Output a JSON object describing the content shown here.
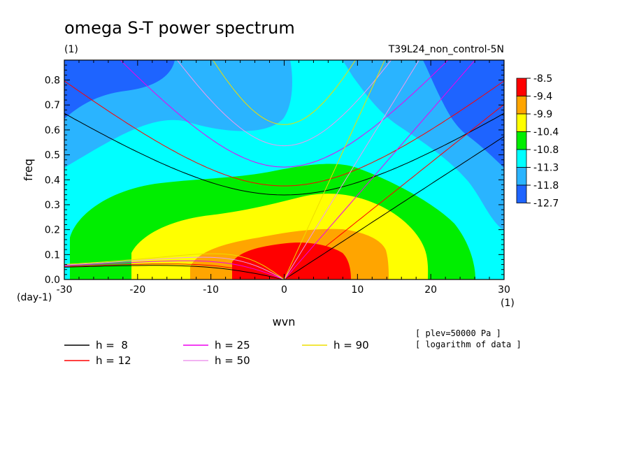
{
  "chart_data": {
    "type": "heatmap",
    "title": "omega S-T power spectrum",
    "units_left": "(1)",
    "run_label": "T39L24_non_control-5N",
    "xlabel": "wvn",
    "ylabel": "freq",
    "x_units": "(1)",
    "y_units": "(day-1)",
    "xlim": [
      -30,
      30
    ],
    "ylim": [
      0,
      0.88
    ],
    "xticks": [
      -30,
      -20,
      -10,
      0,
      10,
      20,
      30
    ],
    "yticks": [
      0.0,
      0.1,
      0.2,
      0.3,
      0.4,
      0.5,
      0.6,
      0.7,
      0.8
    ],
    "colorbar": {
      "levels": [
        "-8.5",
        "-9.4",
        "-9.9",
        "-10.4",
        "-10.8",
        "-11.3",
        "-11.8",
        "-12.7"
      ],
      "colors": [
        "#ff0000",
        "#ffa500",
        "#ffff00",
        "#00ee00",
        "#00ffff",
        "#2ab4ff",
        "#1e64ff"
      ]
    },
    "dispersion_curves": [
      {
        "label": "h =  8",
        "h": 8,
        "color": "#000000"
      },
      {
        "label": "h = 12",
        "h": 12,
        "color": "#ff0000"
      },
      {
        "label": "h = 25",
        "h": 25,
        "color": "#ee00ee"
      },
      {
        "label": "h = 50",
        "h": 50,
        "color": "#ee99ee"
      },
      {
        "label": "h = 90",
        "h": 90,
        "color": "#eedd00"
      }
    ],
    "notes": [
      "[ plev=50000 Pa ]",
      "[ logarithm of data ]"
    ]
  }
}
